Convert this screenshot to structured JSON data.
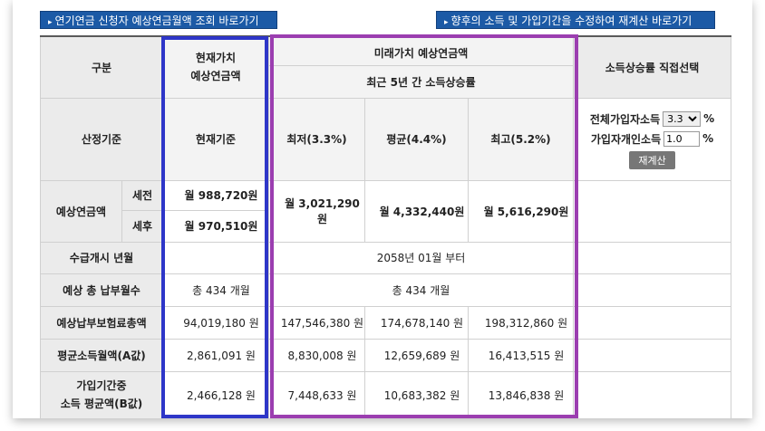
{
  "buttons": {
    "pension_inquiry": "연기연금 신청자 예상연금월액 조회 바로가기",
    "recalc_modify": "향후의 소득 및 가입기간을 수정하여 재계산 바로가기"
  },
  "table": {
    "category": "구분",
    "present_value_title": "현재가치\n예상연금액",
    "future_value_title": "미래가치 예상연금액",
    "income_growth_5y": "최근 5년 간 소득상승률",
    "direct_select_title": "소득상승률 직접선택",
    "basis_label": "산정기준",
    "present_basis": "현재기준",
    "low_label": "최저(3.3%)",
    "avg_label": "평균(4.4%)",
    "high_label": "최고(5.2%)",
    "expected_pension": "예상연금액",
    "pre_tax": "세전",
    "post_tax": "세후",
    "present_pre_tax": "월 988,720원",
    "present_post_tax": "월 970,510원",
    "future_low": "월 3,021,290원",
    "future_avg": "월 4,332,440원",
    "future_high": "월 5,616,290원",
    "start_label": "수급개시 년월",
    "start_value": "2058년 01월 부터",
    "months_label": "예상 총 납부월수",
    "months_present": "총 434 개월",
    "months_future": "총 434 개월",
    "premium_label": "예상납부보험료총액",
    "premium": [
      "94,019,180 원",
      "147,546,380 원",
      "174,678,140 원",
      "198,312,860 원"
    ],
    "a_label": "평균소득월액(A값)",
    "a_values": [
      "2,861,091 원",
      "8,830,008 원",
      "12,659,689 원",
      "16,413,515 원"
    ],
    "b_label_1": "가입기간중",
    "b_label_2": "소득 평균액(B값)",
    "b_values": [
      "2,466,128 원",
      "7,448,633 원",
      "10,683,382 원",
      "13,846,838 원"
    ]
  },
  "direct_select": {
    "all_income_label": "전체가입자소득",
    "all_income_value": "3.3",
    "personal_income_label": "가입자개인소득",
    "personal_income_value": "1.0",
    "percent": "%",
    "recalc_button": "재계산"
  },
  "colors": {
    "button_blue": "#1c5aa6",
    "value_blue": "#1c5aa6",
    "highlight_blue": "#2e36c8",
    "highlight_purple": "#9b3eb0"
  }
}
